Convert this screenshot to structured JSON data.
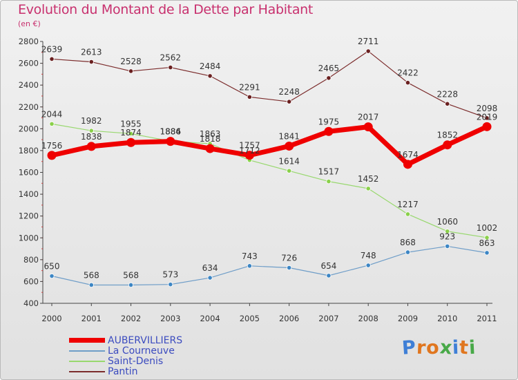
{
  "title": "Evolution du Montant de la Dette par Habitant",
  "subtitle": "(en €)",
  "logo": {
    "letters": [
      "P",
      "r",
      "o",
      "x",
      "i",
      "t",
      "i"
    ],
    "colors": [
      "#3f7fd6",
      "#e0761f",
      "#e0761f",
      "#48a948",
      "#3f7fd6",
      "#e0761f",
      "#48a948"
    ]
  },
  "chart_data": {
    "type": "line",
    "title": "Evolution du Montant de la Dette par Habitant",
    "ylabel": "(en €)",
    "x": [
      "2000",
      "2001",
      "2002",
      "2003",
      "2004",
      "2005",
      "2006",
      "2007",
      "2008",
      "2009",
      "2010",
      "2011"
    ],
    "ylim": [
      400,
      2800
    ],
    "yticks": [
      "400",
      "600",
      "800",
      "1000",
      "1200",
      "1400",
      "1600",
      "1800",
      "2000",
      "2200",
      "2400",
      "2600",
      "2800"
    ],
    "grid": false,
    "legend_position": "bottom-left",
    "series": [
      {
        "name": "AUBERVILLIERS",
        "color": "#ef0000",
        "marker": "#ef0000",
        "values": [
          1756,
          1838,
          1874,
          1884,
          1818,
          1757,
          1841,
          1975,
          2017,
          1674,
          1852,
          2019
        ]
      },
      {
        "name": "La Courneuve",
        "color": "#6e9dc8",
        "marker": "#3d86c4",
        "values": [
          650,
          568,
          568,
          573,
          634,
          743,
          726,
          654,
          748,
          868,
          923,
          863
        ]
      },
      {
        "name": "Saint-Denis",
        "color": "#98d86e",
        "marker": "#8ad04a",
        "values": [
          2044,
          1982,
          1955,
          1886,
          1863,
          1712,
          1614,
          1517,
          1452,
          1217,
          1060,
          1002
        ]
      },
      {
        "name": "Pantin",
        "color": "#7b2b2b",
        "marker": "#6a2020",
        "values": [
          2639,
          2613,
          2528,
          2562,
          2484,
          2291,
          2248,
          2465,
          2711,
          2422,
          2228,
          2098
        ]
      }
    ]
  }
}
